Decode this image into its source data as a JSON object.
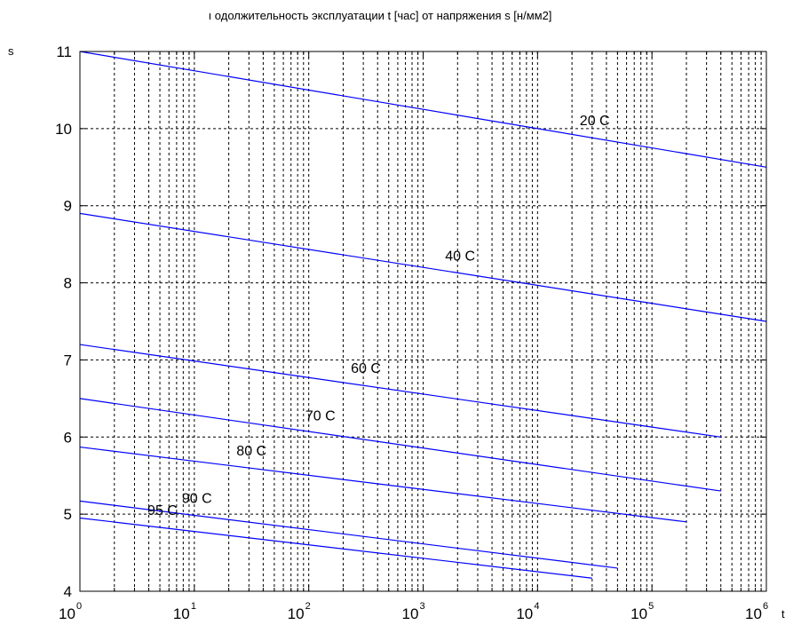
{
  "chart_data": {
    "type": "line",
    "title": "ı одолжительность эксплуатации t [час]  от напряжения s [н/мм2]",
    "xlabel": "t",
    "ylabel": "s",
    "xscale": "log",
    "xlim": [
      1,
      1000000
    ],
    "ylim": [
      4,
      11
    ],
    "grid": true,
    "x_ticks": [
      {
        "base": "10",
        "exp": "0"
      },
      {
        "base": "10",
        "exp": "1"
      },
      {
        "base": "10",
        "exp": "2"
      },
      {
        "base": "10",
        "exp": "3"
      },
      {
        "base": "10",
        "exp": "4"
      },
      {
        "base": "10",
        "exp": "5"
      },
      {
        "base": "10",
        "exp": "6"
      }
    ],
    "y_ticks": [
      "4",
      "5",
      "6",
      "7",
      "8",
      "9",
      "10",
      "11"
    ],
    "line_color": "#0000ff",
    "series": [
      {
        "name": "20 C",
        "x": [
          1,
          1000000
        ],
        "y": [
          11.0,
          9.5
        ]
      },
      {
        "name": "40 C",
        "x": [
          1,
          1000000
        ],
        "y": [
          8.9,
          7.5
        ]
      },
      {
        "name": "60 C",
        "x": [
          1,
          400000
        ],
        "y": [
          7.2,
          6.0
        ]
      },
      {
        "name": "70 C",
        "x": [
          1,
          400000
        ],
        "y": [
          6.5,
          5.3
        ]
      },
      {
        "name": "80 C",
        "x": [
          1,
          200000
        ],
        "y": [
          5.87,
          4.9
        ]
      },
      {
        "name": "90 C",
        "x": [
          1,
          50000
        ],
        "y": [
          5.17,
          4.3
        ]
      },
      {
        "name": "95 C",
        "x": [
          1,
          30000
        ],
        "y": [
          4.95,
          4.17
        ]
      }
    ]
  }
}
